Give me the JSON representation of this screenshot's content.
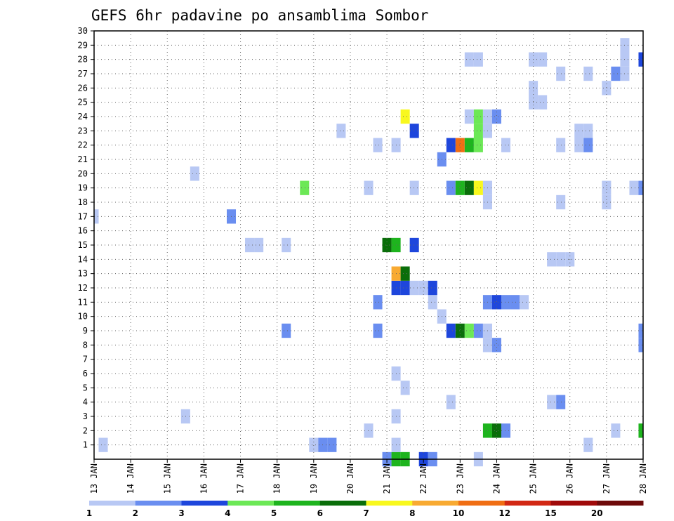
{
  "chart_data": {
    "type": "heatmap",
    "title": "GEFS 6hr padavine po ansamblima Sombor",
    "xlabel": "",
    "ylabel": "",
    "x_tick_labels": [
      "13 JAN",
      "14 JAN",
      "15 JAN",
      "16 JAN",
      "17 JAN",
      "18 JAN",
      "19 JAN",
      "20 JAN",
      "21 JAN",
      "22 JAN",
      "23 JAN",
      "24 JAN",
      "25 JAN",
      "26 JAN",
      "27 JAN",
      "28 JAN"
    ],
    "xlim_days": [
      13,
      28
    ],
    "y_tick_labels": [
      "1",
      "2",
      "3",
      "4",
      "5",
      "6",
      "7",
      "8",
      "9",
      "10",
      "11",
      "12",
      "13",
      "14",
      "15",
      "16",
      "17",
      "18",
      "19",
      "20",
      "21",
      "22",
      "23",
      "24",
      "25",
      "26",
      "27",
      "28",
      "29",
      "30"
    ],
    "ylim": [
      0,
      30
    ],
    "grid": true,
    "legend_placement": "bottom",
    "colorbar": {
      "labels": [
        "1",
        "2",
        "3",
        "4",
        "5",
        "6",
        "7",
        "8",
        "10",
        "12",
        "15",
        "20"
      ],
      "colors": [
        "#b8c8f4",
        "#6a8ef0",
        "#1e46dc",
        "#6ce856",
        "#1eb41e",
        "#0a6e0a",
        "#f8f81e",
        "#f8aa32",
        "#f06e14",
        "#d22814",
        "#a00a0a",
        "#6e0a0a"
      ]
    },
    "cells": [
      {
        "day": 21.0,
        "ens": 0,
        "level": 2
      },
      {
        "day": 21.25,
        "ens": 0,
        "level": 5
      },
      {
        "day": 21.5,
        "ens": 0,
        "level": 5
      },
      {
        "day": 22.0,
        "ens": 0,
        "level": 3
      },
      {
        "day": 22.25,
        "ens": 0,
        "level": 2
      },
      {
        "day": 23.5,
        "ens": 0,
        "level": 1
      },
      {
        "day": 13.25,
        "ens": 1,
        "level": 1
      },
      {
        "day": 19.0,
        "ens": 1,
        "level": 1
      },
      {
        "day": 19.25,
        "ens": 1,
        "level": 2
      },
      {
        "day": 19.5,
        "ens": 1,
        "level": 2
      },
      {
        "day": 21.25,
        "ens": 1,
        "level": 1
      },
      {
        "day": 26.5,
        "ens": 1,
        "level": 1
      },
      {
        "day": 20.5,
        "ens": 2,
        "level": 1
      },
      {
        "day": 23.75,
        "ens": 2,
        "level": 5
      },
      {
        "day": 24.0,
        "ens": 2,
        "level": 6
      },
      {
        "day": 24.25,
        "ens": 2,
        "level": 2
      },
      {
        "day": 27.25,
        "ens": 2,
        "level": 1
      },
      {
        "day": 28.0,
        "ens": 2,
        "level": 5
      },
      {
        "day": 15.5,
        "ens": 3,
        "level": 1
      },
      {
        "day": 21.25,
        "ens": 3,
        "level": 1
      },
      {
        "day": 22.75,
        "ens": 4,
        "level": 1
      },
      {
        "day": 25.5,
        "ens": 4,
        "level": 1
      },
      {
        "day": 25.75,
        "ens": 4,
        "level": 2
      },
      {
        "day": 21.5,
        "ens": 5,
        "level": 1
      },
      {
        "day": 21.25,
        "ens": 6,
        "level": 1
      },
      {
        "day": 23.75,
        "ens": 8,
        "level": 1
      },
      {
        "day": 24.0,
        "ens": 8,
        "level": 2
      },
      {
        "day": 28.0,
        "ens": 8,
        "level": 2
      },
      {
        "day": 18.25,
        "ens": 9,
        "level": 2
      },
      {
        "day": 20.75,
        "ens": 9,
        "level": 2
      },
      {
        "day": 22.75,
        "ens": 9,
        "level": 3
      },
      {
        "day": 23.0,
        "ens": 9,
        "level": 6
      },
      {
        "day": 23.25,
        "ens": 9,
        "level": 4
      },
      {
        "day": 23.5,
        "ens": 9,
        "level": 2
      },
      {
        "day": 23.75,
        "ens": 9,
        "level": 1
      },
      {
        "day": 28.0,
        "ens": 9,
        "level": 2
      },
      {
        "day": 22.5,
        "ens": 10,
        "level": 1
      },
      {
        "day": 20.75,
        "ens": 11,
        "level": 2
      },
      {
        "day": 22.25,
        "ens": 11,
        "level": 1
      },
      {
        "day": 23.75,
        "ens": 11,
        "level": 2
      },
      {
        "day": 24.0,
        "ens": 11,
        "level": 3
      },
      {
        "day": 24.25,
        "ens": 11,
        "level": 2
      },
      {
        "day": 24.5,
        "ens": 11,
        "level": 2
      },
      {
        "day": 24.75,
        "ens": 11,
        "level": 1
      },
      {
        "day": 21.25,
        "ens": 12,
        "level": 3
      },
      {
        "day": 21.5,
        "ens": 12,
        "level": 3
      },
      {
        "day": 21.75,
        "ens": 12,
        "level": 1
      },
      {
        "day": 22.0,
        "ens": 12,
        "level": 1
      },
      {
        "day": 22.25,
        "ens": 12,
        "level": 3
      },
      {
        "day": 21.25,
        "ens": 13,
        "level": 8
      },
      {
        "day": 21.5,
        "ens": 13,
        "level": 6
      },
      {
        "day": 25.5,
        "ens": 14,
        "level": 1
      },
      {
        "day": 25.75,
        "ens": 14,
        "level": 1
      },
      {
        "day": 26.0,
        "ens": 14,
        "level": 1
      },
      {
        "day": 17.25,
        "ens": 15,
        "level": 1
      },
      {
        "day": 17.5,
        "ens": 15,
        "level": 1
      },
      {
        "day": 18.25,
        "ens": 15,
        "level": 1
      },
      {
        "day": 21.0,
        "ens": 15,
        "level": 6
      },
      {
        "day": 21.25,
        "ens": 15,
        "level": 5
      },
      {
        "day": 21.75,
        "ens": 15,
        "level": 3
      },
      {
        "day": 13.0,
        "ens": 17,
        "level": 1
      },
      {
        "day": 16.75,
        "ens": 17,
        "level": 2
      },
      {
        "day": 23.75,
        "ens": 18,
        "level": 1
      },
      {
        "day": 25.75,
        "ens": 18,
        "level": 1
      },
      {
        "day": 27.0,
        "ens": 18,
        "level": 1
      },
      {
        "day": 18.75,
        "ens": 19,
        "level": 4
      },
      {
        "day": 20.5,
        "ens": 19,
        "level": 1
      },
      {
        "day": 21.75,
        "ens": 19,
        "level": 1
      },
      {
        "day": 22.75,
        "ens": 19,
        "level": 2
      },
      {
        "day": 23.0,
        "ens": 19,
        "level": 5
      },
      {
        "day": 23.25,
        "ens": 19,
        "level": 6
      },
      {
        "day": 23.5,
        "ens": 19,
        "level": 7
      },
      {
        "day": 23.75,
        "ens": 19,
        "level": 1
      },
      {
        "day": 27.0,
        "ens": 19,
        "level": 1
      },
      {
        "day": 27.75,
        "ens": 19,
        "level": 1
      },
      {
        "day": 28.0,
        "ens": 19,
        "level": 2
      },
      {
        "day": 15.75,
        "ens": 20,
        "level": 1
      },
      {
        "day": 22.5,
        "ens": 21,
        "level": 2
      },
      {
        "day": 20.75,
        "ens": 22,
        "level": 1
      },
      {
        "day": 21.25,
        "ens": 22,
        "level": 1
      },
      {
        "day": 22.75,
        "ens": 22,
        "level": 3
      },
      {
        "day": 23.0,
        "ens": 22,
        "level": 9
      },
      {
        "day": 23.25,
        "ens": 22,
        "level": 5
      },
      {
        "day": 23.5,
        "ens": 22,
        "level": 4
      },
      {
        "day": 24.25,
        "ens": 22,
        "level": 1
      },
      {
        "day": 25.75,
        "ens": 22,
        "level": 1
      },
      {
        "day": 26.25,
        "ens": 22,
        "level": 1
      },
      {
        "day": 26.5,
        "ens": 22,
        "level": 2
      },
      {
        "day": 19.75,
        "ens": 23,
        "level": 1
      },
      {
        "day": 21.75,
        "ens": 23,
        "level": 3
      },
      {
        "day": 23.5,
        "ens": 23,
        "level": 4
      },
      {
        "day": 23.75,
        "ens": 23,
        "level": 1
      },
      {
        "day": 26.25,
        "ens": 23,
        "level": 1
      },
      {
        "day": 26.5,
        "ens": 23,
        "level": 1
      },
      {
        "day": 21.5,
        "ens": 24,
        "level": 7
      },
      {
        "day": 23.25,
        "ens": 24,
        "level": 1
      },
      {
        "day": 23.5,
        "ens": 24,
        "level": 4
      },
      {
        "day": 23.75,
        "ens": 24,
        "level": 1
      },
      {
        "day": 24.0,
        "ens": 24,
        "level": 2
      },
      {
        "day": 25.0,
        "ens": 25,
        "level": 1
      },
      {
        "day": 25.25,
        "ens": 25,
        "level": 1
      },
      {
        "day": 25.0,
        "ens": 26,
        "level": 1
      },
      {
        "day": 27.0,
        "ens": 26,
        "level": 1
      },
      {
        "day": 25.75,
        "ens": 27,
        "level": 1
      },
      {
        "day": 26.5,
        "ens": 27,
        "level": 1
      },
      {
        "day": 27.25,
        "ens": 27,
        "level": 2
      },
      {
        "day": 27.5,
        "ens": 27,
        "level": 1
      },
      {
        "day": 23.25,
        "ens": 28,
        "level": 1
      },
      {
        "day": 23.5,
        "ens": 28,
        "level": 1
      },
      {
        "day": 25.0,
        "ens": 28,
        "level": 1
      },
      {
        "day": 25.25,
        "ens": 28,
        "level": 1
      },
      {
        "day": 27.5,
        "ens": 28,
        "level": 1
      },
      {
        "day": 28.0,
        "ens": 28,
        "level": 3
      },
      {
        "day": 27.5,
        "ens": 29,
        "level": 1
      }
    ]
  }
}
